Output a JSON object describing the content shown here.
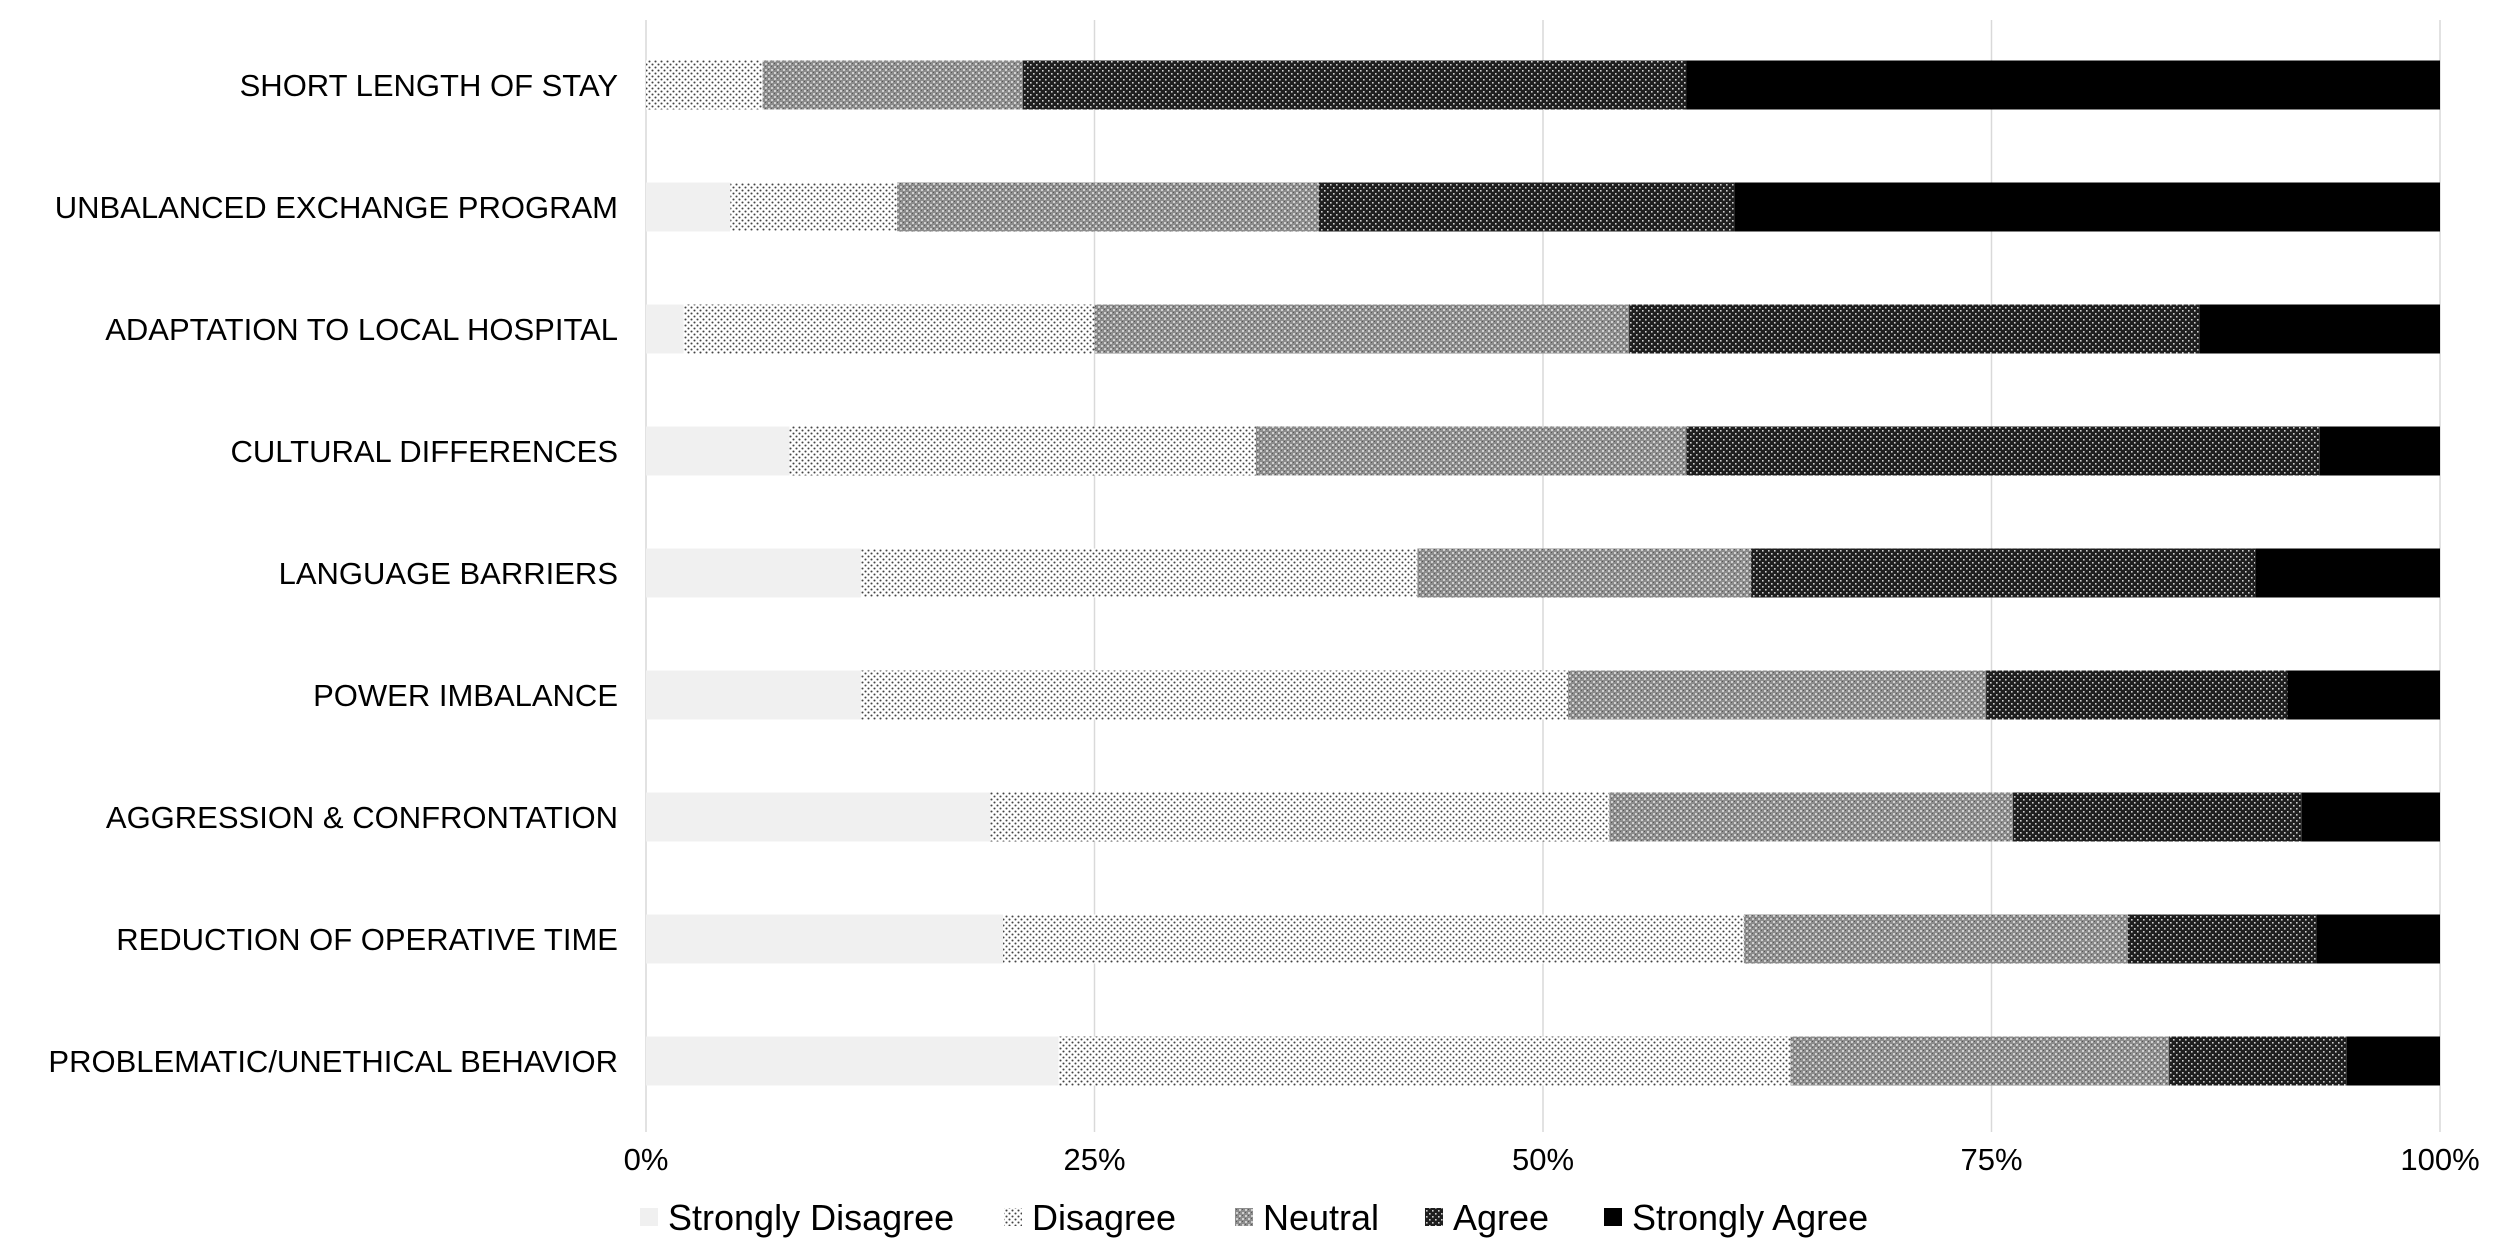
{
  "chart_data": {
    "type": "bar",
    "orientation": "horizontal",
    "stacked": "100%",
    "categories": [
      "SHORT LENGTH OF STAY",
      "UNBALANCED EXCHANGE PROGRAM",
      "ADAPTATION TO LOCAL HOSPITAL",
      "CULTURAL DIFFERENCES",
      "LANGUAGE BARRIERS",
      "POWER IMBALANCE",
      "AGGRESSION & CONFRONTATION",
      "REDUCTION OF OPERATIVE TIME",
      "PROBLEMATIC/UNETHICAL BEHAVIOR"
    ],
    "series": [
      {
        "name": "Strongly Disagree",
        "pattern": "light",
        "values": [
          0,
          4.7,
          2.1,
          8.0,
          12.0,
          12.0,
          19.2,
          19.9,
          23.0
        ]
      },
      {
        "name": "Disagree",
        "pattern": "fine-dots",
        "values": [
          6.5,
          9.3,
          22.9,
          26.0,
          31.0,
          39.4,
          34.5,
          41.3,
          40.8
        ]
      },
      {
        "name": "Neutral",
        "pattern": "medium-crosshatch",
        "values": [
          14.5,
          23.5,
          29.8,
          24.0,
          18.6,
          23.3,
          22.5,
          21.4,
          21.1
        ]
      },
      {
        "name": "Agree",
        "pattern": "dark-crosshatch",
        "values": [
          37.0,
          23.2,
          31.8,
          35.3,
          28.1,
          16.8,
          16.1,
          10.5,
          9.9
        ]
      },
      {
        "name": "Strongly Agree",
        "pattern": "solid-black",
        "values": [
          42.0,
          39.3,
          13.4,
          6.7,
          10.3,
          8.5,
          7.7,
          6.9,
          5.2
        ]
      }
    ],
    "xlim": [
      0,
      100
    ],
    "x_ticks": [
      "0%",
      "25%",
      "50%",
      "75%",
      "100%"
    ],
    "x_tick_values": [
      0,
      25,
      50,
      75,
      100
    ],
    "grid": true,
    "legend_position": "bottom",
    "title": "",
    "xlabel": "",
    "ylabel": "",
    "colors": {
      "background": "#ffffff",
      "grid": "#d9d9d9",
      "strongly_disagree": "#f0f0f0",
      "dark": "#000000"
    }
  }
}
